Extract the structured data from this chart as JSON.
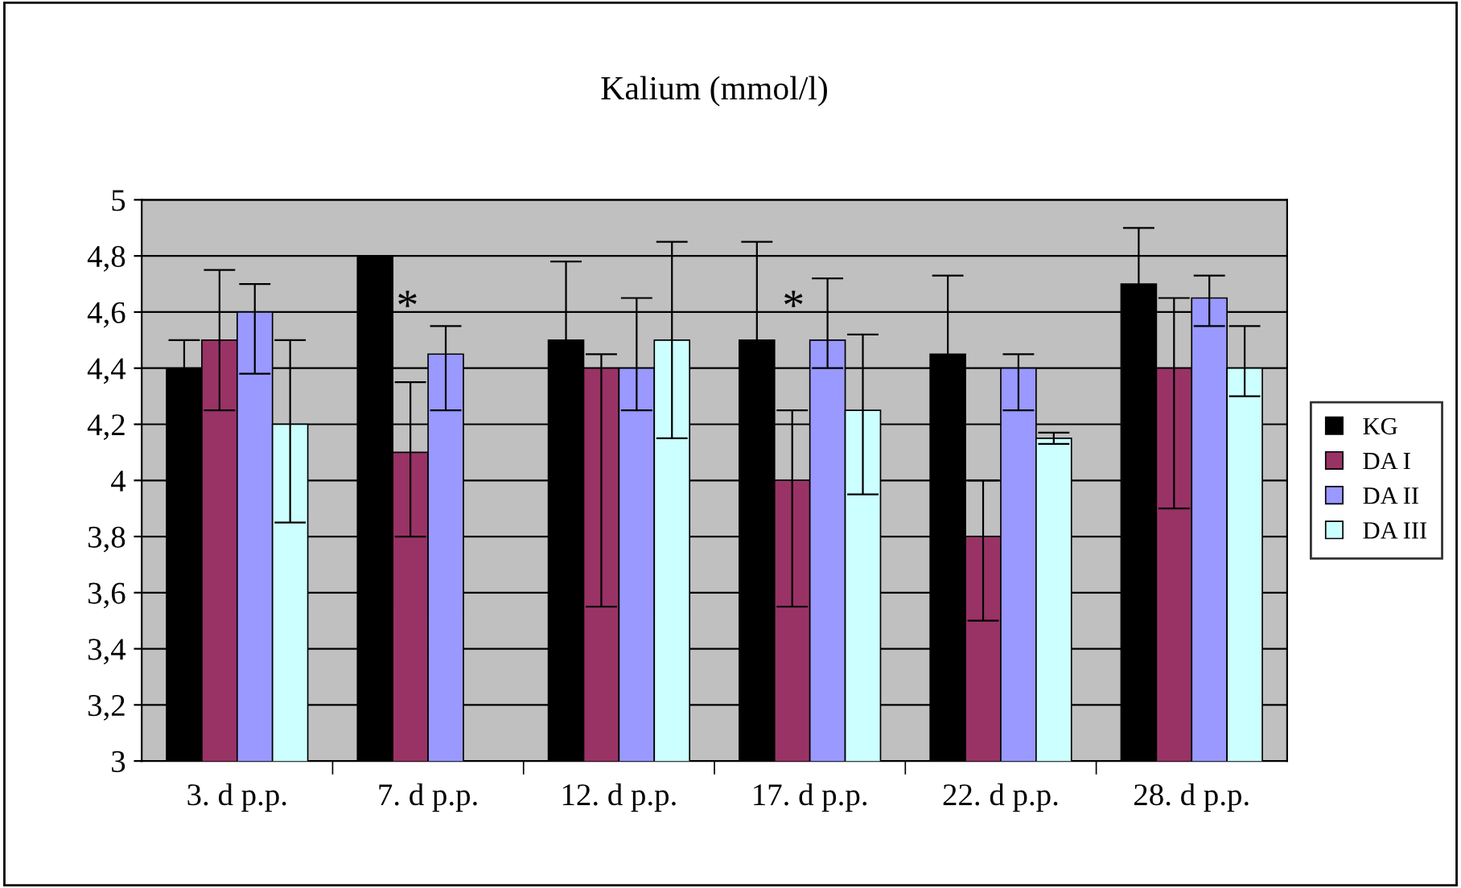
{
  "chart_data": {
    "type": "bar",
    "title": "Kalium (mmol/l)",
    "categories": [
      "3. d p.p.",
      "7. d p.p.",
      "12. d p.p.",
      "17. d p.p.",
      "22. d p.p.",
      "28. d p.p."
    ],
    "series": [
      {
        "name": "KG",
        "color": "#000000",
        "values": [
          4.4,
          4.8,
          4.5,
          4.5,
          4.45,
          4.7
        ],
        "errors": [
          0.1,
          null,
          0.28,
          0.35,
          0.28,
          0.2
        ]
      },
      {
        "name": "DA I",
        "color": "#993366",
        "values": [
          4.5,
          4.1,
          4.4,
          4.0,
          3.8,
          4.4
        ],
        "errors": [
          [
            4.25,
            4.75
          ],
          [
            3.8,
            4.35
          ],
          [
            3.55,
            4.45
          ],
          [
            3.55,
            4.25
          ],
          [
            3.5,
            4.0
          ],
          [
            3.9,
            4.65
          ]
        ]
      },
      {
        "name": "DA II",
        "color": "#9999ff",
        "values": [
          4.6,
          4.45,
          4.4,
          4.5,
          4.4,
          4.65
        ],
        "errors": [
          [
            4.38,
            4.7
          ],
          [
            4.25,
            4.55
          ],
          [
            4.25,
            4.65
          ],
          [
            4.4,
            4.72
          ],
          [
            4.25,
            4.45
          ],
          [
            4.55,
            4.73
          ]
        ]
      },
      {
        "name": "DA III",
        "color": "#ccffff",
        "values": [
          4.2,
          null,
          4.5,
          4.25,
          4.15,
          4.4
        ],
        "errors": [
          [
            3.85,
            4.5
          ],
          null,
          [
            4.15,
            4.85
          ],
          [
            3.95,
            4.52
          ],
          [
            4.13,
            4.17
          ],
          [
            4.3,
            4.55
          ]
        ]
      }
    ],
    "ylim": [
      3,
      5
    ],
    "yticks": [
      3,
      {
        "value": 3.2,
        "label": "3,2"
      },
      {
        "value": 3.4,
        "label": "3,4"
      },
      {
        "value": 3.6,
        "label": "3,6"
      },
      {
        "value": 3.8,
        "label": "3,8"
      },
      4,
      {
        "value": 4.2,
        "label": "4,2"
      },
      {
        "value": 4.4,
        "label": "4,4"
      },
      {
        "value": 4.6,
        "label": "4,6"
      },
      {
        "value": 4.8,
        "label": "4,8"
      },
      5
    ],
    "grid": "y",
    "legend": "right",
    "annotations": [
      "*",
      "*"
    ]
  }
}
